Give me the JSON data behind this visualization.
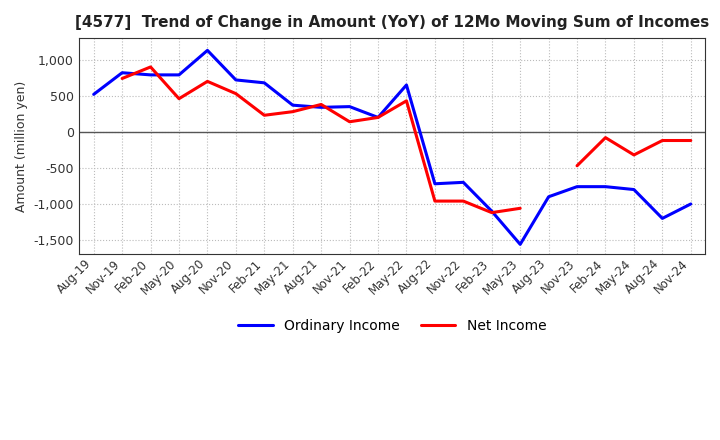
{
  "title": "[4577]  Trend of Change in Amount (YoY) of 12Mo Moving Sum of Incomes",
  "ylabel": "Amount (million yen)",
  "labels": [
    "Aug-19",
    "Nov-19",
    "Feb-20",
    "May-20",
    "Aug-20",
    "Nov-20",
    "Feb-21",
    "May-21",
    "Aug-21",
    "Nov-21",
    "Feb-22",
    "May-22",
    "Aug-22",
    "Nov-22",
    "Feb-23",
    "May-23",
    "Aug-23",
    "Nov-23",
    "Feb-24",
    "May-24",
    "Aug-24",
    "Nov-24"
  ],
  "ordinary_income": [
    520,
    820,
    790,
    790,
    1130,
    720,
    680,
    370,
    340,
    350,
    200,
    650,
    -720,
    -700,
    -1100,
    -1560,
    -900,
    -760,
    -760,
    -800,
    -1200,
    -1000
  ],
  "net_income": [
    null,
    740,
    900,
    460,
    700,
    530,
    230,
    280,
    380,
    140,
    200,
    430,
    -960,
    -960,
    -1120,
    -1060,
    null,
    -470,
    -80,
    -320,
    -120,
    -120
  ],
  "ordinary_color": "#0000ff",
  "net_color": "#ff0000",
  "ylim": [
    -1700,
    1300
  ],
  "yticks": [
    -1500,
    -1000,
    -500,
    0,
    500,
    1000
  ],
  "grid_color": "#bbbbbb",
  "bg_color": "#ffffff",
  "plot_bg_color": "#ffffff",
  "spine_color": "#333333",
  "tick_color": "#333333"
}
